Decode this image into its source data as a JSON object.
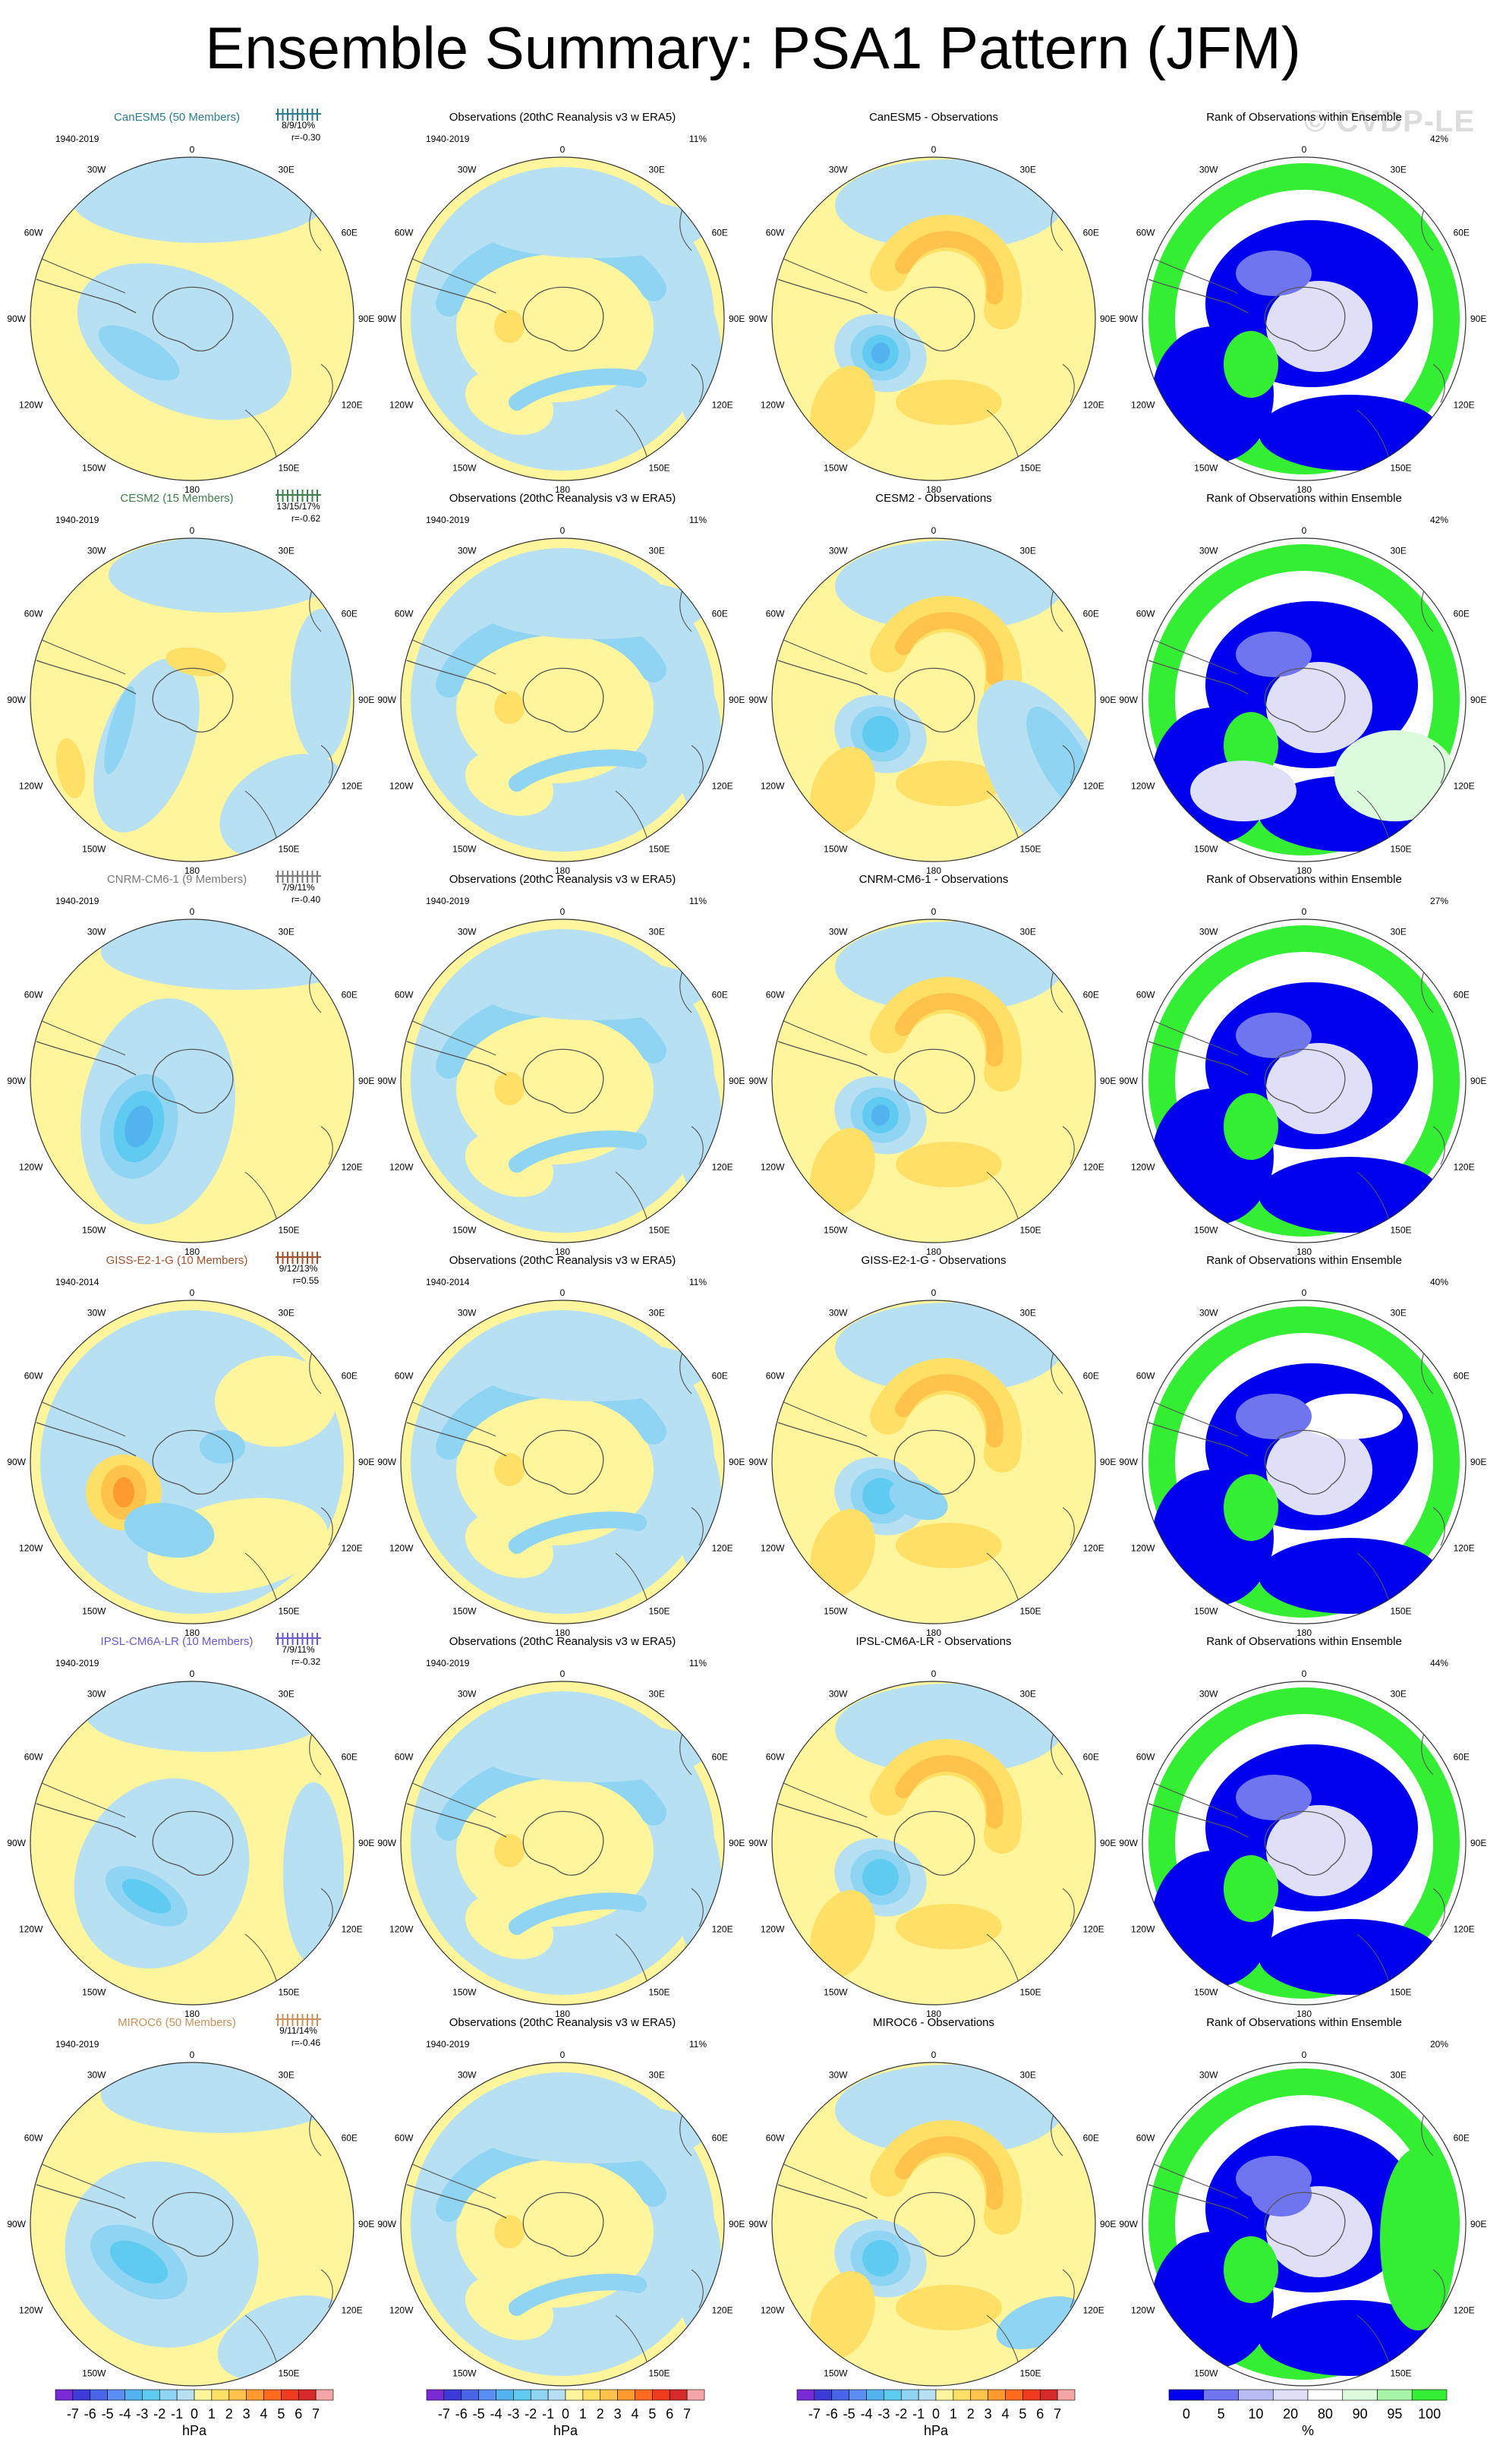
{
  "title": "Ensemble Summary: PSA1 Pattern (JFM)",
  "watermark": "© CVDP-LE",
  "polar_labels": [
    "0",
    "30E",
    "60E",
    "90E",
    "120E",
    "150E",
    "180",
    "150W",
    "120W",
    "90W",
    "60W",
    "30W"
  ],
  "rows": [
    {
      "model": "CanESM5 (50 Members)",
      "model_color": "#2b7d8a",
      "model_short": "CanESM5",
      "years_model": "1940-2019",
      "years_obs": "1940-2019",
      "stats": "8/9/10%",
      "r": "r=-0.30",
      "obs_pct": "11%",
      "rank_pct": "42%",
      "chart_data": {
        "type": "heatmap",
        "model_anomaly_hPa": {
          "min": -3,
          "max": 1
        },
        "obs_anomaly_hPa": {
          "min": -3,
          "max": 1
        },
        "diff_hPa": {
          "min": -4,
          "max": 3
        }
      }
    },
    {
      "model": "CESM2 (15 Members)",
      "model_color": "#3f7f4a",
      "model_short": "CESM2",
      "years_model": "1940-2019",
      "years_obs": "1940-2019",
      "stats": "13/15/17%",
      "r": "r=-0.62",
      "obs_pct": "11%",
      "rank_pct": "42%",
      "chart_data": {
        "type": "heatmap",
        "model_anomaly_hPa": {
          "min": -2,
          "max": 1
        },
        "obs_anomaly_hPa": {
          "min": -3,
          "max": 1
        },
        "diff_hPa": {
          "min": -4,
          "max": 3
        }
      }
    },
    {
      "model": "CNRM-CM6-1 (9 Members)",
      "model_color": "#7a7a7a",
      "model_short": "CNRM-CM6-1",
      "years_model": "1940-2019",
      "years_obs": "1940-2019",
      "stats": "7/9/11%",
      "r": "r=-0.40",
      "obs_pct": "11%",
      "rank_pct": "27%",
      "chart_data": {
        "type": "heatmap",
        "model_anomaly_hPa": {
          "min": -4,
          "max": 1
        },
        "obs_anomaly_hPa": {
          "min": -3,
          "max": 1
        },
        "diff_hPa": {
          "min": -4,
          "max": 2
        }
      }
    },
    {
      "model": "GISS-E2-1-G (10 Members)",
      "model_color": "#a0522d",
      "model_short": "GISS-E2-1-G",
      "years_model": "1940-2014",
      "years_obs": "1940-2014",
      "stats": "9/12/13%",
      "r": "r=0.55",
      "obs_pct": "11%",
      "rank_pct": "40%",
      "chart_data": {
        "type": "heatmap",
        "model_anomaly_hPa": {
          "min": -2,
          "max": 3
        },
        "obs_anomaly_hPa": {
          "min": -3,
          "max": 1
        },
        "diff_hPa": {
          "min": -2,
          "max": 2
        }
      }
    },
    {
      "model": "IPSL-CM6A-LR (10 Members)",
      "model_color": "#6a5acd",
      "model_short": "IPSL-CM6A-LR",
      "years_model": "1940-2019",
      "years_obs": "1940-2019",
      "stats": "7/9/11%",
      "r": "r=-0.32",
      "obs_pct": "11%",
      "rank_pct": "44%",
      "chart_data": {
        "type": "heatmap",
        "model_anomaly_hPa": {
          "min": -3,
          "max": 1
        },
        "obs_anomaly_hPa": {
          "min": -3,
          "max": 1
        },
        "diff_hPa": {
          "min": -4,
          "max": 2
        }
      }
    },
    {
      "model": "MIROC6 (50 Members)",
      "model_color": "#c8925a",
      "model_short": "MIROC6",
      "years_model": "1940-2019",
      "years_obs": "1940-2019",
      "stats": "9/11/14%",
      "r": "r=-0.46",
      "obs_pct": "11%",
      "rank_pct": "20%",
      "chart_data": {
        "type": "heatmap",
        "model_anomaly_hPa": {
          "min": -3,
          "max": 1
        },
        "obs_anomaly_hPa": {
          "min": -3,
          "max": 1
        },
        "diff_hPa": {
          "min": -4,
          "max": 2
        }
      }
    }
  ],
  "obs_title": "Observations (20thC Reanalysis v3 w ERA5)",
  "diff_suffix": " - Observations",
  "rank_title": "Rank of Observations within Ensemble",
  "colorbar_anom": {
    "labels": [
      "-7",
      "-6",
      "-5",
      "-4",
      "-3",
      "-2",
      "-1",
      "0",
      "1",
      "2",
      "3",
      "4",
      "5",
      "6",
      "7"
    ],
    "colors": [
      "#7b2bd6",
      "#3b3bd8",
      "#4a66e8",
      "#5a8ef0",
      "#53b3ef",
      "#5fcbf0",
      "#8fd4f2",
      "#b7e0f2",
      "#fff59d",
      "#ffe066",
      "#ffc24a",
      "#ff9a2e",
      "#ff6a1f",
      "#f03c1e",
      "#d62a2a",
      "#f4a6a6"
    ],
    "unit": "hPa"
  },
  "colorbar_rank": {
    "labels": [
      "0",
      "5",
      "10",
      "20",
      "80",
      "90",
      "95",
      "100"
    ],
    "colors": [
      "#0000ee",
      "#6f74ef",
      "#b9bcf3",
      "#dfe0f8",
      "#ffffff",
      "#dcfadc",
      "#a6f5a6",
      "#33ee33"
    ],
    "unit": "%"
  }
}
